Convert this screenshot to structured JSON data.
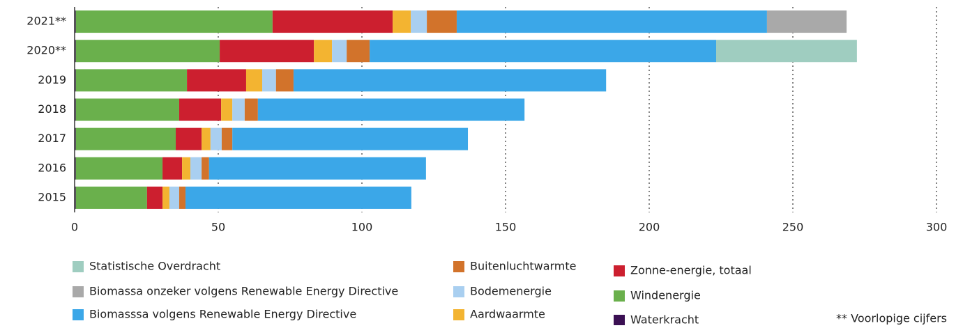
{
  "chart_data": {
    "type": "stacked_bar_horizontal",
    "categories": [
      "2021**",
      "2020**",
      "2019",
      "2018",
      "2017",
      "2016",
      "2015"
    ],
    "series": [
      {
        "name": "Waterkracht",
        "color": "#3b1053",
        "values": [
          0.4,
          0.4,
          0.4,
          0.4,
          0.4,
          0.4,
          0.4
        ]
      },
      {
        "name": "Windenergie",
        "color": "#6ab04c",
        "values": [
          68.5,
          50.1,
          38.7,
          36.0,
          34.8,
          30.2,
          24.8
        ]
      },
      {
        "name": "Zonne-energie, totaal",
        "color": "#cc1f2f",
        "values": [
          41.8,
          32.8,
          20.6,
          14.6,
          9.0,
          6.8,
          5.4
        ]
      },
      {
        "name": "Aardwaarmte",
        "color": "#f3b431",
        "values": [
          6.3,
          6.3,
          5.6,
          3.9,
          3.1,
          2.9,
          2.4
        ]
      },
      {
        "name": "Bodemenergie",
        "color": "#a9cff0",
        "values": [
          5.6,
          5.1,
          4.8,
          4.3,
          3.9,
          3.9,
          3.4
        ]
      },
      {
        "name": "Buitenluchtwarmte",
        "color": "#d2732b",
        "values": [
          10.4,
          8.0,
          6.1,
          4.6,
          3.7,
          2.6,
          2.2
        ]
      },
      {
        "name": "Biomasssa volgens Renewable Energy Directive",
        "color": "#3ba7e8",
        "values": [
          108.0,
          120.6,
          108.8,
          92.8,
          82.0,
          75.5,
          78.6
        ]
      },
      {
        "name": "Biomassa onzeker volgens Renewable Energy Directive",
        "color": "#a9a9a9",
        "values": [
          27.7,
          0,
          0,
          0,
          0,
          0,
          0
        ]
      },
      {
        "name": "Statistische Overdracht",
        "color": "#9fcdc0",
        "values": [
          0,
          49.0,
          0,
          0,
          0,
          0,
          0
        ]
      }
    ],
    "xlim": [
      0,
      300
    ],
    "xticks": [
      0,
      50,
      100,
      150,
      200,
      250,
      300
    ],
    "grid": true,
    "note": "** Voorlopige cijfers"
  }
}
